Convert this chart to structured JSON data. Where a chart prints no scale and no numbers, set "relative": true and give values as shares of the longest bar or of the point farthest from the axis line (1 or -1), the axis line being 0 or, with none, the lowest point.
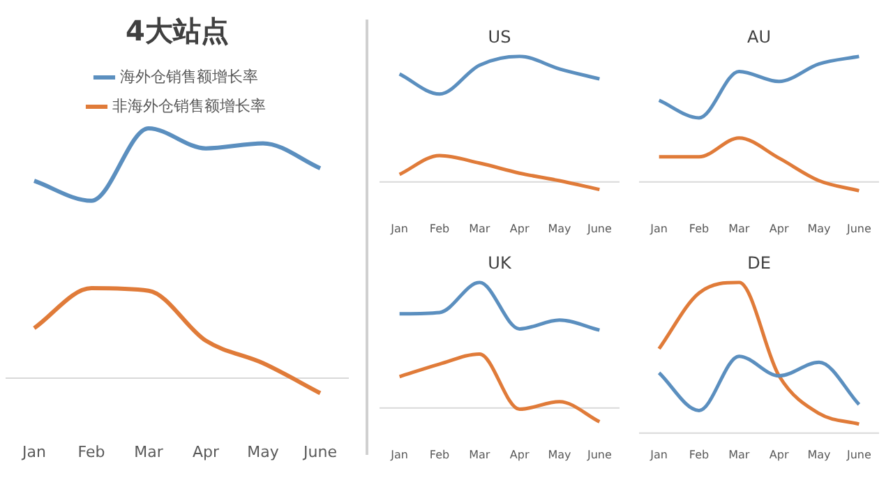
{
  "chart_data": [
    {
      "type": "line",
      "title": "4大站点",
      "categories": [
        "Jan",
        "Feb",
        "Mar",
        "Apr",
        "May",
        "June"
      ],
      "relative": true,
      "legend": "top",
      "marker": "none",
      "series": [
        {
          "name": "海外仓销售额增长率",
          "color": "#5b8fbf",
          "values": [
            0.79,
            0.71,
            1,
            0.92,
            0.94,
            0.84
          ]
        },
        {
          "name": "非海外仓销售额增长率",
          "color": "#e07b39",
          "values": [
            0.2,
            0.36,
            0.35,
            0.15,
            0.06,
            -0.06
          ]
        }
      ]
    },
    {
      "type": "line",
      "title": "US",
      "categories": [
        "Jan",
        "Feb",
        "Mar",
        "Apr",
        "May",
        "June"
      ],
      "relative": true,
      "marker": "none",
      "series": [
        {
          "color": "#5b8fbf",
          "values": [
            0.86,
            0.7,
            0.93,
            1,
            0.9,
            0.82
          ]
        },
        {
          "color": "#e07b39",
          "values": [
            0.06,
            0.21,
            0.15,
            0.07,
            0.01,
            -0.06
          ]
        }
      ]
    },
    {
      "type": "line",
      "title": "AU",
      "categories": [
        "Jan",
        "Feb",
        "Mar",
        "Apr",
        "May",
        "June"
      ],
      "relative": true,
      "marker": "none",
      "series": [
        {
          "color": "#5b8fbf",
          "values": [
            0.65,
            0.51,
            0.88,
            0.8,
            0.94,
            1
          ]
        },
        {
          "color": "#e07b39",
          "values": [
            0.2,
            0.2,
            0.35,
            0.19,
            0.01,
            -0.07
          ]
        }
      ]
    },
    {
      "type": "line",
      "title": "UK",
      "categories": [
        "Jan",
        "Feb",
        "Mar",
        "Apr",
        "May",
        "June"
      ],
      "relative": true,
      "marker": "none",
      "series": [
        {
          "color": "#5b8fbf",
          "values": [
            0.75,
            0.76,
            1,
            0.63,
            0.7,
            0.62
          ]
        },
        {
          "color": "#e07b39",
          "values": [
            0.25,
            0.35,
            0.43,
            -0.01,
            0.05,
            -0.11
          ]
        }
      ]
    },
    {
      "type": "line",
      "title": "DE",
      "categories": [
        "Jan",
        "Feb",
        "Mar",
        "Apr",
        "May",
        "June"
      ],
      "relative": true,
      "marker": "none",
      "series": [
        {
          "color": "#5b8fbf",
          "values": [
            0.4,
            0.15,
            0.51,
            0.38,
            0.47,
            0.19
          ]
        },
        {
          "color": "#e07b39",
          "values": [
            0.56,
            0.93,
            1,
            0.38,
            0.13,
            0.06
          ]
        }
      ]
    }
  ]
}
